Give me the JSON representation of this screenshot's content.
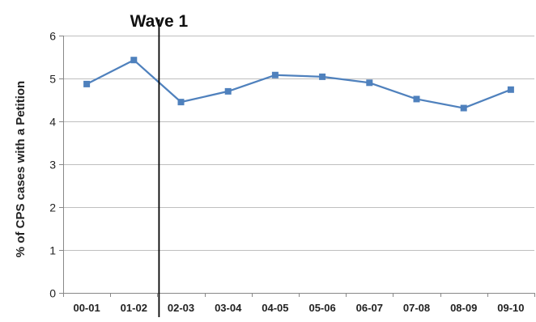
{
  "chart_data": {
    "type": "line",
    "title": "",
    "xlabel": "",
    "ylabel": "% of CPS cases with a Petition",
    "categories": [
      "00-01",
      "01-02",
      "02-03",
      "03-04",
      "04-05",
      "05-06",
      "06-07",
      "07-08",
      "08-09",
      "09-10"
    ],
    "series": [
      {
        "values": [
          4.87,
          5.43,
          4.45,
          4.7,
          5.08,
          5.04,
          4.9,
          4.52,
          4.31,
          4.74
        ],
        "color": "#4f81bd",
        "marker": "square"
      }
    ],
    "ylim": [
      0,
      6
    ],
    "yticks": [
      0,
      1,
      2,
      3,
      4,
      5,
      6
    ],
    "grid": true,
    "legend": "none",
    "annotations": [
      {
        "label": "Wave 1",
        "type": "vertical-line",
        "x_between": [
          "01-02",
          "02-03"
        ],
        "color": "#000000"
      }
    ],
    "gridline_color": "#bfbfbf"
  }
}
